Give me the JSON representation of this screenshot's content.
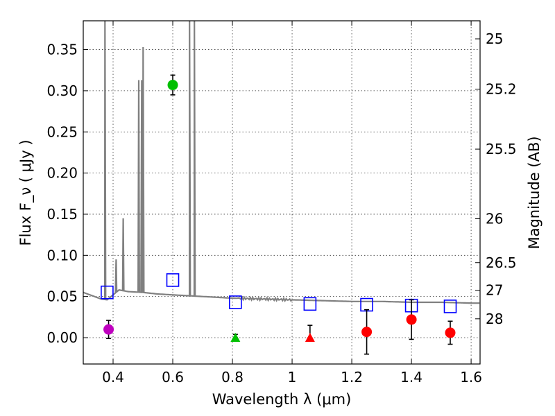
{
  "chart_data": {
    "type": "scatter",
    "title": "",
    "xlabel": "Wavelength  λ (μm)",
    "ylabel": "Flux  F_ν  ( μJy )",
    "y2label": "Magnitude (AB)",
    "xlim": [
      0.3,
      1.63
    ],
    "ylim": [
      -0.032,
      0.385
    ],
    "grid": true,
    "x_ticks": [
      0.4,
      0.6,
      0.8,
      1.0,
      1.2,
      1.4,
      1.6
    ],
    "x_tick_labels": [
      "0.4",
      "0.6",
      "0.8",
      "1",
      "1.2",
      "1.4",
      "1.6"
    ],
    "y_ticks": [
      0.0,
      0.05,
      0.1,
      0.15,
      0.2,
      0.25,
      0.3,
      0.35
    ],
    "y_tick_labels": [
      "0.00",
      "0.05",
      "0.10",
      "0.15",
      "0.20",
      "0.25",
      "0.30",
      "0.35"
    ],
    "y2_tick_labels": [
      "25",
      "25.2",
      "25.5",
      "26",
      "26.5",
      "27",
      "28"
    ],
    "y2_tick_mags": [
      25.0,
      25.2,
      25.5,
      26.0,
      26.5,
      27.0,
      28.0
    ],
    "model_spectrum": {
      "name": "model SED",
      "color": "#808080",
      "continuum": [
        [
          0.3,
          0.055
        ],
        [
          0.33,
          0.051
        ],
        [
          0.36,
          0.047
        ],
        [
          0.38,
          0.046
        ],
        [
          0.4,
          0.052
        ],
        [
          0.42,
          0.058
        ],
        [
          0.45,
          0.056
        ],
        [
          0.5,
          0.055
        ],
        [
          0.55,
          0.053
        ],
        [
          0.6,
          0.052
        ],
        [
          0.65,
          0.051
        ],
        [
          0.7,
          0.05
        ],
        [
          0.75,
          0.049
        ],
        [
          0.8,
          0.048
        ],
        [
          0.9,
          0.047
        ],
        [
          1.0,
          0.046
        ],
        [
          1.1,
          0.045
        ],
        [
          1.2,
          0.044
        ],
        [
          1.3,
          0.044
        ],
        [
          1.4,
          0.043
        ],
        [
          1.5,
          0.043
        ],
        [
          1.6,
          0.042
        ],
        [
          1.63,
          0.042
        ]
      ],
      "emission_lines": [
        {
          "x": 0.3727,
          "peak": 0.385
        },
        {
          "x": 0.4102,
          "peak": 0.095
        },
        {
          "x": 0.434,
          "peak": 0.145
        },
        {
          "x": 0.4861,
          "peak": 0.313
        },
        {
          "x": 0.4959,
          "peak": 0.313
        },
        {
          "x": 0.5007,
          "peak": 0.353
        },
        {
          "x": 0.6563,
          "peak": 0.385
        },
        {
          "x": 0.6724,
          "peak": 0.385
        }
      ]
    },
    "model_photometry": {
      "name": "model photometry",
      "marker": "open-square",
      "color": "#0000ff",
      "x": [
        0.38,
        0.6,
        0.81,
        1.06,
        1.25,
        1.4,
        1.53
      ],
      "y": [
        0.055,
        0.07,
        0.043,
        0.041,
        0.04,
        0.039,
        0.038
      ]
    },
    "observed": [
      {
        "name": "violet band",
        "x": 0.385,
        "y": 0.01,
        "err": 0.011,
        "color": "#bf00bf",
        "marker": "circle"
      },
      {
        "name": "green band",
        "x": 0.6,
        "y": 0.307,
        "err": 0.012,
        "color": "#00bf00",
        "marker": "circle"
      },
      {
        "name": "green limit",
        "x": 0.81,
        "y": 0.0,
        "err_low": 0.0,
        "err_high": 0.004,
        "color": "#00bf00",
        "marker": "triangle"
      },
      {
        "name": "red limit",
        "x": 1.06,
        "y": 0.0,
        "err_low": 0.0,
        "err_high": 0.015,
        "color": "#ff0000",
        "marker": "triangle"
      },
      {
        "name": "red band 1",
        "x": 1.25,
        "y": 0.007,
        "err": 0.027,
        "color": "#ff0000",
        "marker": "circle"
      },
      {
        "name": "red band 2",
        "x": 1.4,
        "y": 0.022,
        "err": 0.024,
        "color": "#ff0000",
        "marker": "circle"
      },
      {
        "name": "red band 3",
        "x": 1.53,
        "y": 0.006,
        "err": 0.014,
        "color": "#ff0000",
        "marker": "circle"
      }
    ]
  }
}
